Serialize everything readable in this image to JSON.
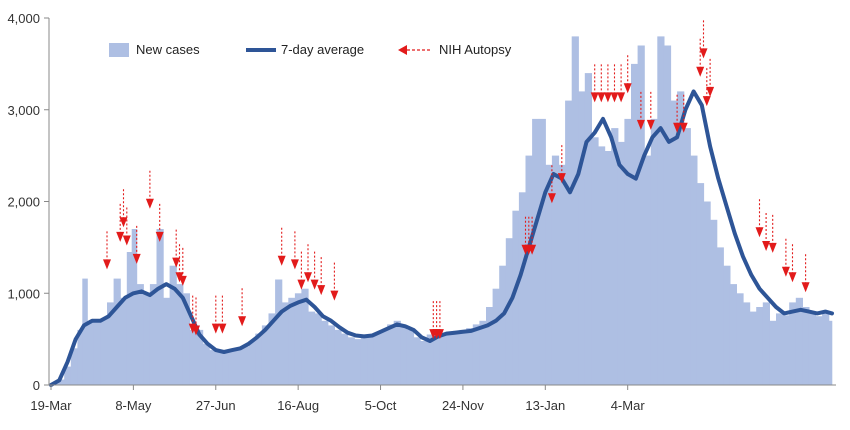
{
  "chart_data": {
    "type": "bar",
    "title": "",
    "xlabel": "",
    "ylabel": "",
    "ylim": [
      0,
      4000
    ],
    "grid": false,
    "legend_placement": "top",
    "x_tick_labels": [
      "19-Mar",
      "8-May",
      "27-Jun",
      "16-Aug",
      "5-Oct",
      "24-Nov",
      "13-Jan",
      "4-Mar"
    ],
    "y_tick_labels": [
      "0",
      "1,000",
      "2,000",
      "3,000",
      "4,000"
    ],
    "y_ticks": [
      0,
      1000,
      2000,
      3000,
      4000
    ],
    "legend": [
      {
        "key": "bars",
        "label": "New cases"
      },
      {
        "key": "line",
        "label": "7-day average"
      },
      {
        "key": "arrow",
        "label": "NIH Autopsy"
      }
    ],
    "colors": {
      "bars": "#aebfe3",
      "line": "#2e5597",
      "arrow": "#e21b1b",
      "axis": "#888888"
    },
    "day_range": [
      0,
      352
    ],
    "series": [
      {
        "name": "7-day average",
        "type": "line",
        "points": [
          [
            0,
            0
          ],
          [
            5,
            50
          ],
          [
            10,
            250
          ],
          [
            15,
            500
          ],
          [
            20,
            650
          ],
          [
            25,
            700
          ],
          [
            30,
            700
          ],
          [
            35,
            750
          ],
          [
            40,
            850
          ],
          [
            45,
            950
          ],
          [
            50,
            1000
          ],
          [
            55,
            1020
          ],
          [
            60,
            980
          ],
          [
            65,
            1050
          ],
          [
            70,
            1100
          ],
          [
            75,
            1050
          ],
          [
            80,
            950
          ],
          [
            85,
            750
          ],
          [
            90,
            550
          ],
          [
            95,
            450
          ],
          [
            100,
            380
          ],
          [
            105,
            360
          ],
          [
            110,
            380
          ],
          [
            115,
            400
          ],
          [
            120,
            450
          ],
          [
            125,
            520
          ],
          [
            130,
            600
          ],
          [
            135,
            700
          ],
          [
            140,
            800
          ],
          [
            145,
            860
          ],
          [
            150,
            900
          ],
          [
            155,
            930
          ],
          [
            160,
            850
          ],
          [
            165,
            750
          ],
          [
            170,
            700
          ],
          [
            175,
            630
          ],
          [
            180,
            570
          ],
          [
            185,
            540
          ],
          [
            190,
            530
          ],
          [
            195,
            540
          ],
          [
            200,
            580
          ],
          [
            205,
            620
          ],
          [
            210,
            660
          ],
          [
            215,
            640
          ],
          [
            220,
            600
          ],
          [
            225,
            520
          ],
          [
            230,
            480
          ],
          [
            235,
            530
          ],
          [
            240,
            560
          ],
          [
            245,
            570
          ],
          [
            250,
            580
          ],
          [
            255,
            590
          ],
          [
            260,
            620
          ],
          [
            265,
            650
          ],
          [
            270,
            700
          ],
          [
            275,
            780
          ],
          [
            280,
            950
          ],
          [
            285,
            1200
          ],
          [
            290,
            1500
          ],
          [
            295,
            1800
          ],
          [
            300,
            2100
          ],
          [
            305,
            2300
          ],
          [
            310,
            2250
          ],
          [
            315,
            2100
          ],
          [
            320,
            2300
          ],
          [
            325,
            2650
          ],
          [
            330,
            2750
          ],
          [
            335,
            2900
          ],
          [
            340,
            2700
          ],
          [
            345,
            2400
          ],
          [
            350,
            2300
          ],
          [
            355,
            2250
          ],
          [
            360,
            2500
          ],
          [
            365,
            2700
          ],
          [
            370,
            2800
          ],
          [
            375,
            2650
          ],
          [
            380,
            2700
          ],
          [
            385,
            3000
          ],
          [
            390,
            3200
          ],
          [
            395,
            3050
          ],
          [
            400,
            2600
          ],
          [
            405,
            2250
          ],
          [
            410,
            1950
          ],
          [
            415,
            1650
          ],
          [
            420,
            1400
          ],
          [
            425,
            1200
          ],
          [
            430,
            1050
          ],
          [
            435,
            950
          ],
          [
            440,
            850
          ],
          [
            445,
            780
          ],
          [
            450,
            800
          ],
          [
            455,
            820
          ],
          [
            460,
            800
          ],
          [
            465,
            780
          ],
          [
            470,
            800
          ],
          [
            474,
            780
          ]
        ]
      },
      {
        "name": "New cases",
        "type": "bar",
        "points": [
          [
            0,
            20
          ],
          [
            4,
            60
          ],
          [
            8,
            200
          ],
          [
            12,
            400
          ],
          [
            16,
            600
          ],
          [
            19,
            1160
          ],
          [
            22,
            700
          ],
          [
            26,
            680
          ],
          [
            30,
            720
          ],
          [
            34,
            900
          ],
          [
            38,
            1160
          ],
          [
            42,
            950
          ],
          [
            46,
            1450
          ],
          [
            49,
            1700
          ],
          [
            52,
            1100
          ],
          [
            56,
            1000
          ],
          [
            60,
            1100
          ],
          [
            64,
            1700
          ],
          [
            68,
            950
          ],
          [
            72,
            1300
          ],
          [
            76,
            1100
          ],
          [
            80,
            1000
          ],
          [
            84,
            600
          ],
          [
            88,
            600
          ],
          [
            92,
            450
          ],
          [
            96,
            380
          ],
          [
            100,
            360
          ],
          [
            104,
            350
          ],
          [
            108,
            380
          ],
          [
            112,
            400
          ],
          [
            116,
            420
          ],
          [
            120,
            480
          ],
          [
            124,
            560
          ],
          [
            128,
            650
          ],
          [
            132,
            780
          ],
          [
            136,
            1150
          ],
          [
            140,
            900
          ],
          [
            144,
            950
          ],
          [
            148,
            1000
          ],
          [
            152,
            1050
          ],
          [
            156,
            800
          ],
          [
            160,
            780
          ],
          [
            164,
            700
          ],
          [
            168,
            650
          ],
          [
            172,
            600
          ],
          [
            176,
            560
          ],
          [
            180,
            520
          ],
          [
            184,
            500
          ],
          [
            188,
            520
          ],
          [
            192,
            540
          ],
          [
            196,
            560
          ],
          [
            200,
            600
          ],
          [
            204,
            660
          ],
          [
            208,
            700
          ],
          [
            212,
            650
          ],
          [
            216,
            600
          ],
          [
            220,
            520
          ],
          [
            224,
            480
          ],
          [
            228,
            550
          ],
          [
            232,
            580
          ],
          [
            236,
            560
          ],
          [
            240,
            580
          ],
          [
            244,
            590
          ],
          [
            248,
            600
          ],
          [
            252,
            620
          ],
          [
            256,
            660
          ],
          [
            260,
            700
          ],
          [
            264,
            850
          ],
          [
            268,
            1050
          ],
          [
            272,
            1300
          ],
          [
            276,
            1600
          ],
          [
            280,
            1900
          ],
          [
            284,
            2100
          ],
          [
            288,
            2500
          ],
          [
            292,
            2900
          ],
          [
            296,
            2900
          ],
          [
            300,
            2400
          ],
          [
            304,
            2500
          ],
          [
            308,
            2400
          ],
          [
            312,
            3100
          ],
          [
            316,
            3800
          ],
          [
            320,
            3200
          ],
          [
            324,
            3400
          ],
          [
            328,
            2700
          ],
          [
            332,
            2600
          ],
          [
            336,
            2550
          ],
          [
            340,
            2800
          ],
          [
            344,
            2650
          ],
          [
            348,
            2900
          ],
          [
            352,
            3500
          ],
          [
            356,
            3700
          ],
          [
            360,
            2500
          ],
          [
            364,
            2900
          ],
          [
            368,
            3800
          ],
          [
            372,
            3700
          ],
          [
            376,
            3100
          ],
          [
            380,
            3200
          ],
          [
            384,
            2800
          ],
          [
            388,
            2500
          ],
          [
            392,
            2200
          ],
          [
            396,
            2000
          ],
          [
            400,
            1800
          ],
          [
            404,
            1500
          ],
          [
            408,
            1300
          ],
          [
            412,
            1100
          ],
          [
            416,
            1000
          ],
          [
            420,
            900
          ],
          [
            424,
            800
          ],
          [
            428,
            850
          ],
          [
            432,
            900
          ],
          [
            436,
            700
          ],
          [
            440,
            780
          ],
          [
            444,
            760
          ],
          [
            448,
            900
          ],
          [
            452,
            950
          ],
          [
            456,
            850
          ],
          [
            460,
            800
          ],
          [
            464,
            750
          ],
          [
            468,
            780
          ],
          [
            472,
            700
          ]
        ]
      },
      {
        "name": "NIH Autopsy",
        "type": "arrow",
        "points": [
          [
            34,
            1260
          ],
          [
            42,
            1560
          ],
          [
            44,
            1720
          ],
          [
            46,
            1520
          ],
          [
            52,
            1320
          ],
          [
            60,
            1920
          ],
          [
            66,
            1560
          ],
          [
            76,
            1280
          ],
          [
            78,
            1120
          ],
          [
            80,
            1080
          ],
          [
            86,
            560
          ],
          [
            88,
            540
          ],
          [
            100,
            560
          ],
          [
            104,
            560
          ],
          [
            116,
            640
          ],
          [
            140,
            1300
          ],
          [
            148,
            1260
          ],
          [
            152,
            1040
          ],
          [
            156,
            1120
          ],
          [
            160,
            1040
          ],
          [
            164,
            980
          ],
          [
            172,
            920
          ],
          [
            232,
            500
          ],
          [
            234,
            500
          ],
          [
            236,
            500
          ],
          [
            288,
            1420
          ],
          [
            290,
            1420
          ],
          [
            292,
            1420
          ],
          [
            304,
            1980
          ],
          [
            310,
            2200
          ],
          [
            330,
            3080
          ],
          [
            334,
            3080
          ],
          [
            338,
            3080
          ],
          [
            342,
            3080
          ],
          [
            346,
            3080
          ],
          [
            350,
            3180
          ],
          [
            358,
            2780
          ],
          [
            364,
            2780
          ],
          [
            380,
            2750
          ],
          [
            384,
            2750
          ],
          [
            394,
            3360
          ],
          [
            396,
            3560
          ],
          [
            398,
            3040
          ],
          [
            400,
            3140
          ],
          [
            430,
            1610
          ],
          [
            434,
            1460
          ],
          [
            438,
            1440
          ],
          [
            446,
            1180
          ],
          [
            450,
            1120
          ],
          [
            458,
            1010
          ]
        ]
      }
    ]
  }
}
